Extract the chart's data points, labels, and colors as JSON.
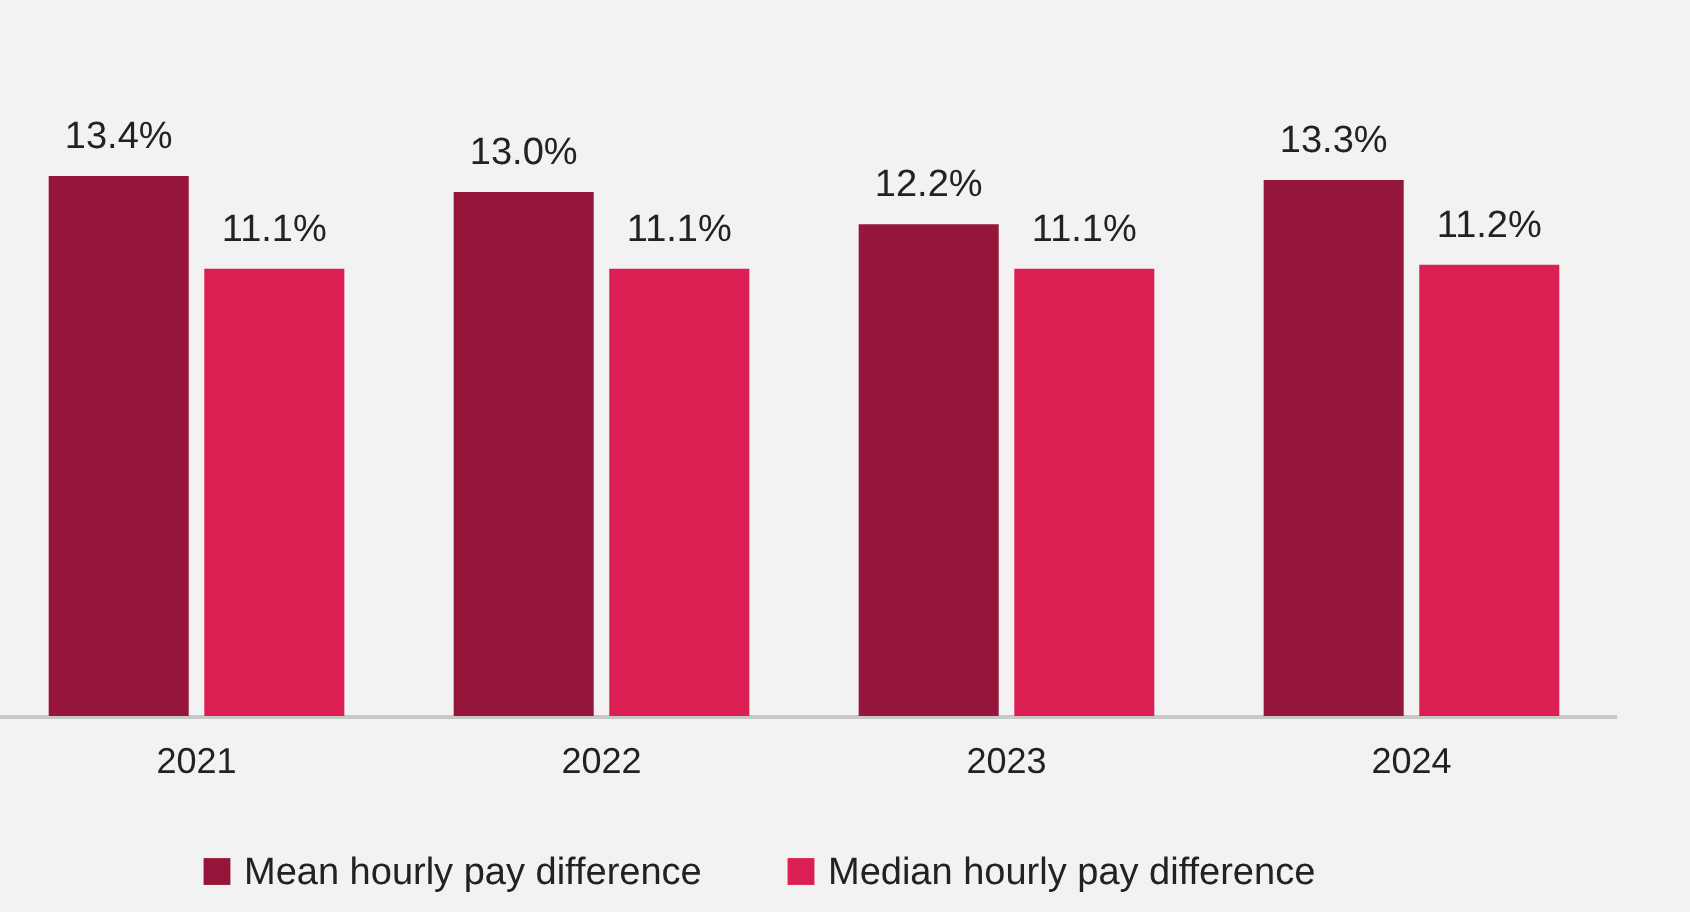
{
  "chart_data": {
    "type": "bar",
    "categories": [
      "2021",
      "2022",
      "2023",
      "2024"
    ],
    "series": [
      {
        "name": "Mean hourly pay difference",
        "color": "#95163a",
        "values": [
          13.4,
          13.0,
          12.2,
          13.3
        ],
        "value_labels": [
          "13.4%",
          "13.0%",
          "12.2%",
          "13.3%"
        ]
      },
      {
        "name": "Median hourly pay difference",
        "color": "#dc1f52",
        "values": [
          11.1,
          11.1,
          11.1,
          11.2
        ],
        "value_labels": [
          "11.1%",
          "11.1%",
          "11.1%",
          "11.2%"
        ]
      }
    ],
    "legend": "bottom"
  }
}
